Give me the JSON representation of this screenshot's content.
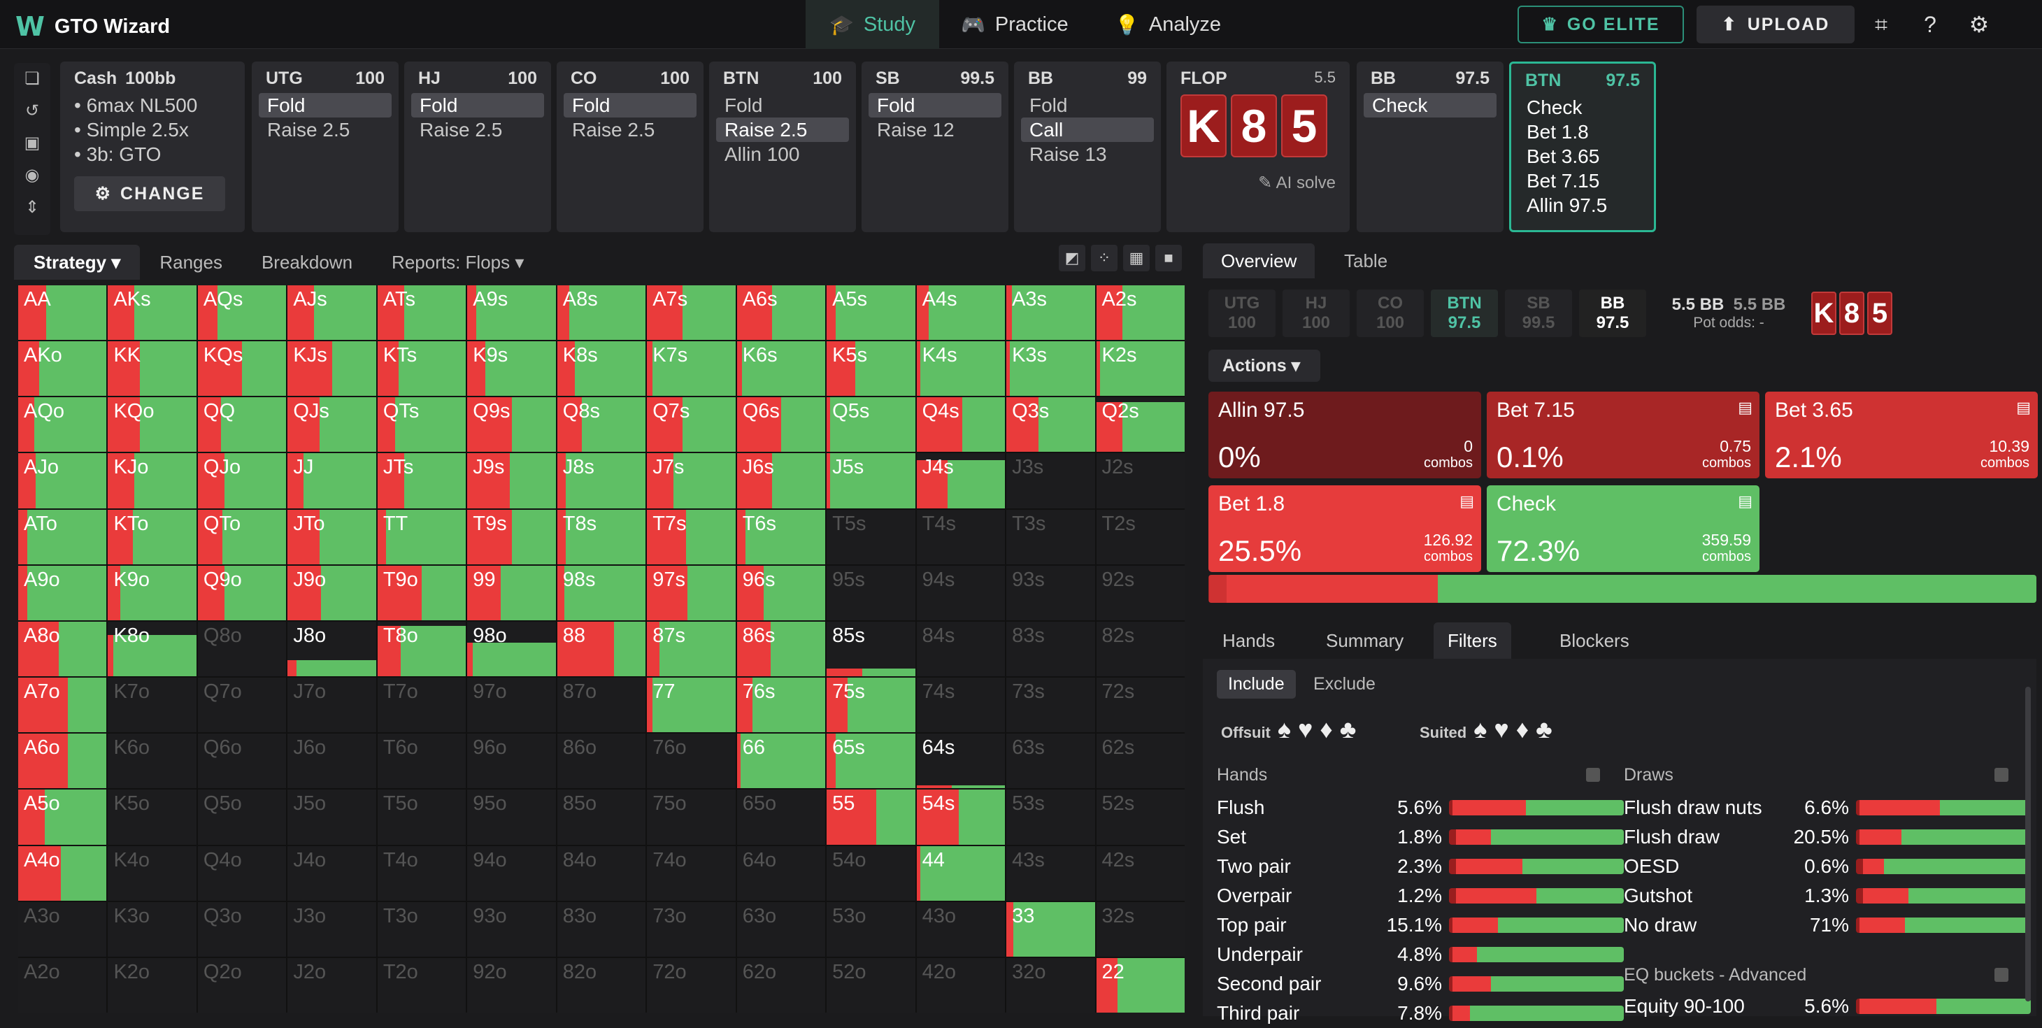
{
  "app": {
    "name": "GTO Wizard",
    "logo": "W"
  },
  "nav": [
    {
      "label": "Study",
      "icon": "graduation-cap-icon",
      "active": true
    },
    {
      "label": "Practice",
      "icon": "gamepad-icon",
      "active": false
    },
    {
      "label": "Analyze",
      "icon": "lightbulb-icon",
      "active": false
    }
  ],
  "header": {
    "elite": "GO ELITE",
    "upload": "UPLOAD"
  },
  "setup": {
    "title": "Cash",
    "stack": "100bb",
    "lines": [
      "• 6max NL500",
      "• Simple 2.5x",
      "• 3b: GTO"
    ],
    "change": "CHANGE"
  },
  "positions": [
    {
      "name": "UTG",
      "stack": "100",
      "options": [
        "Fold",
        "Raise 2.5"
      ],
      "selected": 0
    },
    {
      "name": "HJ",
      "stack": "100",
      "options": [
        "Fold",
        "Raise 2.5"
      ],
      "selected": 0
    },
    {
      "name": "CO",
      "stack": "100",
      "options": [
        "Fold",
        "Raise 2.5"
      ],
      "selected": 0
    },
    {
      "name": "BTN",
      "stack": "100",
      "options": [
        "Fold",
        "Raise 2.5",
        "Allin 100"
      ],
      "selected": 1
    },
    {
      "name": "SB",
      "stack": "99.5",
      "options": [
        "Fold",
        "Raise 12"
      ],
      "selected": 0
    },
    {
      "name": "BB",
      "stack": "99",
      "options": [
        "Fold",
        "Call",
        "Raise 13"
      ],
      "selected": 1
    }
  ],
  "flop": {
    "label": "FLOP",
    "pot": "5.5",
    "cards": [
      "K",
      "8",
      "5"
    ],
    "ai": "AI solve"
  },
  "bbcard": {
    "name": "BB",
    "stack": "97.5",
    "options": [
      "Check"
    ]
  },
  "btncard": {
    "name": "BTN",
    "stack": "97.5",
    "options": [
      "Check",
      "Bet 1.8",
      "Bet 3.65",
      "Bet 7.15",
      "Allin 97.5"
    ]
  },
  "left_tabs": [
    "Strategy",
    "Ranges",
    "Breakdown",
    "Reports: Flops"
  ],
  "right_tabs": [
    "Overview",
    "Table"
  ],
  "pos_row": [
    {
      "n": "UTG",
      "s": "100"
    },
    {
      "n": "HJ",
      "s": "100"
    },
    {
      "n": "CO",
      "s": "100"
    },
    {
      "n": "BTN",
      "s": "97.5"
    },
    {
      "n": "SB",
      "s": "99.5"
    },
    {
      "n": "BB",
      "s": "97.5"
    }
  ],
  "pot": {
    "a": "5.5 BB",
    "b": "5.5 BB",
    "odds": "Pot odds:",
    "oddsval": "-"
  },
  "board": [
    "K",
    "8",
    "5"
  ],
  "actions_label": "Actions",
  "actions": [
    {
      "name": "Allin 97.5",
      "pct": "0%",
      "combos": "0",
      "unit": "combos",
      "color": "#6e1b1d",
      "icon": false
    },
    {
      "name": "Bet 7.15",
      "pct": "0.1%",
      "combos": "0.75",
      "unit": "combos",
      "color": "#a82626",
      "icon": true
    },
    {
      "name": "Bet 3.65",
      "pct": "2.1%",
      "combos": "10.39",
      "unit": "combos",
      "color": "#cf3232",
      "icon": true
    },
    {
      "name": "Bet 1.8",
      "pct": "25.5%",
      "combos": "126.92",
      "unit": "combos",
      "color": "#e63c3c",
      "icon": true
    },
    {
      "name": "Check",
      "pct": "72.3%",
      "combos": "359.59",
      "unit": "combos",
      "color": "#5fbf65",
      "icon": true
    }
  ],
  "sub_tabs": [
    "Hands",
    "Summary",
    "Filters",
    "Blockers"
  ],
  "filters": {
    "include": "Include",
    "exclude": "Exclude",
    "offsuit": "Offsuit",
    "suited": "Suited",
    "hands_title": "Hands",
    "draws_title": "Draws",
    "eq_title": "EQ buckets - Advanced",
    "hands": [
      {
        "n": "Flush",
        "v": "5.6%",
        "r": 0.42,
        "d": 0.02
      },
      {
        "n": "Set",
        "v": "1.8%",
        "r": 0.2,
        "d": 0.04
      },
      {
        "n": "Two pair",
        "v": "2.3%",
        "r": 0.38,
        "d": 0.04
      },
      {
        "n": "Overpair",
        "v": "1.2%",
        "r": 0.46,
        "d": 0.04
      },
      {
        "n": "Top pair",
        "v": "15.1%",
        "r": 0.26,
        "d": 0.02
      },
      {
        "n": "Underpair",
        "v": "4.8%",
        "r": 0.14,
        "d": 0.02
      },
      {
        "n": "Second pair",
        "v": "9.6%",
        "r": 0.22,
        "d": 0.02
      },
      {
        "n": "Third pair",
        "v": "7.8%",
        "r": 0.1,
        "d": 0.02
      }
    ],
    "draws": [
      {
        "n": "Flush draw nuts",
        "v": "6.6%",
        "r": 0.46,
        "d": 0.02
      },
      {
        "n": "Flush draw",
        "v": "20.5%",
        "r": 0.24,
        "d": 0.02
      },
      {
        "n": "OESD",
        "v": "0.6%",
        "r": 0.12,
        "d": 0.04
      },
      {
        "n": "Gutshot",
        "v": "1.3%",
        "r": 0.26,
        "d": 0.04
      },
      {
        "n": "No draw",
        "v": "71%",
        "r": 0.26,
        "d": 0.02
      }
    ],
    "eq": [
      {
        "n": "Equity 90-100",
        "v": "5.6%",
        "r": 0.44,
        "d": 0.02
      }
    ]
  },
  "grid": [
    [
      [
        "AA",
        1,
        0.32
      ],
      [
        "AKs",
        1,
        0.3
      ],
      [
        "AQs",
        1,
        0.22
      ],
      [
        "AJs",
        1,
        0.3
      ],
      [
        "ATs",
        1,
        0.3
      ],
      [
        "A9s",
        1,
        0.1
      ],
      [
        "A8s",
        1,
        0.14
      ],
      [
        "A7s",
        1,
        0.4
      ],
      [
        "A6s",
        1,
        0.4
      ],
      [
        "A5s",
        1,
        0.1
      ],
      [
        "A4s",
        1,
        0.14
      ],
      [
        "A3s",
        1,
        0.06
      ],
      [
        "A2s",
        1,
        0.3
      ]
    ],
    [
      [
        "AKo",
        1,
        0.24
      ],
      [
        "KK",
        1,
        0.36
      ],
      [
        "KQs",
        1,
        0.5
      ],
      [
        "KJs",
        1,
        0.5
      ],
      [
        "KTs",
        1,
        0.24
      ],
      [
        "K9s",
        1,
        0.2
      ],
      [
        "K8s",
        1,
        0.2
      ],
      [
        "K7s",
        1,
        0.06
      ],
      [
        "K6s",
        1,
        0.06
      ],
      [
        "K5s",
        1,
        0.32
      ],
      [
        "K4s",
        1,
        0.04
      ],
      [
        "K3s",
        1,
        0.04
      ],
      [
        "K2s",
        1,
        0.04
      ]
    ],
    [
      [
        "AQo",
        1,
        0.18
      ],
      [
        "KQo",
        1,
        0.36
      ],
      [
        "QQ",
        1,
        0.26
      ],
      [
        "QJs",
        1,
        0.36
      ],
      [
        "QTs",
        1,
        0.2
      ],
      [
        "Q9s",
        1,
        0.5
      ],
      [
        "Q8s",
        1,
        0.28
      ],
      [
        "Q7s",
        1,
        0.4
      ],
      [
        "Q6s",
        1,
        0.5
      ],
      [
        "Q5s",
        1,
        0.04
      ],
      [
        "Q4s",
        1,
        0.52
      ],
      [
        "Q3s",
        1,
        0.36
      ],
      [
        "Q2s",
        0.92,
        0.3
      ]
    ],
    [
      [
        "AJo",
        1,
        0.2
      ],
      [
        "KJo",
        1,
        0.3
      ],
      [
        "QJo",
        1,
        0.3
      ],
      [
        "JJ",
        1,
        0.18
      ],
      [
        "JTs",
        1,
        0.3
      ],
      [
        "J9s",
        1,
        0.48
      ],
      [
        "J8s",
        1,
        0.1
      ],
      [
        "J7s",
        1,
        0.3
      ],
      [
        "J6s",
        1,
        0.4
      ],
      [
        "J5s",
        1,
        0.04
      ],
      [
        "J4s",
        0.88,
        0.35
      ],
      [
        "J3s",
        0,
        0
      ],
      [
        "J2s",
        0,
        0
      ]
    ],
    [
      [
        "ATo",
        1,
        0.1
      ],
      [
        "KTo",
        1,
        0.28
      ],
      [
        "QTo",
        1,
        0.28
      ],
      [
        "JTo",
        1,
        0.36
      ],
      [
        "TT",
        1,
        0.1
      ],
      [
        "T9s",
        1,
        0.5
      ],
      [
        "T8s",
        1,
        0.1
      ],
      [
        "T7s",
        1,
        0.44
      ],
      [
        "T6s",
        1,
        0.1
      ],
      [
        "T5s",
        0,
        0
      ],
      [
        "T4s",
        0,
        0
      ],
      [
        "T3s",
        0,
        0
      ],
      [
        "T2s",
        0,
        0
      ]
    ],
    [
      [
        "A9o",
        1,
        0.1
      ],
      [
        "K9o",
        1,
        0.14
      ],
      [
        "Q9o",
        1,
        0.3
      ],
      [
        "J9o",
        1,
        0.38
      ],
      [
        "T9o",
        1,
        0.5
      ],
      [
        "99",
        1,
        0.38
      ],
      [
        "98s",
        1,
        0.08
      ],
      [
        "97s",
        1,
        0.46
      ],
      [
        "96s",
        1,
        0.3
      ],
      [
        "95s",
        0,
        0
      ],
      [
        "94s",
        0,
        0
      ],
      [
        "93s",
        0,
        0
      ],
      [
        "92s",
        0,
        0
      ]
    ],
    [
      [
        "A8o",
        1,
        0.46
      ],
      [
        "K8o",
        0.76,
        0.06
      ],
      [
        "Q8o",
        0,
        0
      ],
      [
        "J8o",
        0.3,
        0.1
      ],
      [
        "T8o",
        0.92,
        0.26
      ],
      [
        "98o",
        0.62,
        0.06
      ],
      [
        "88",
        1,
        0.64
      ],
      [
        "87s",
        1,
        0.14
      ],
      [
        "86s",
        1,
        0.38
      ],
      [
        "85s",
        0.14,
        0.4
      ],
      [
        "84s",
        0,
        0
      ],
      [
        "83s",
        0,
        0
      ],
      [
        "82s",
        0,
        0
      ]
    ],
    [
      [
        "A7o",
        1,
        0.56
      ],
      [
        "K7o",
        0,
        0
      ],
      [
        "Q7o",
        0,
        0
      ],
      [
        "J7o",
        0,
        0
      ],
      [
        "T7o",
        0,
        0
      ],
      [
        "97o",
        0,
        0
      ],
      [
        "87o",
        0,
        0
      ],
      [
        "77",
        1,
        0.06
      ],
      [
        "76s",
        1,
        0.18
      ],
      [
        "75s",
        1,
        0.24
      ],
      [
        "74s",
        0,
        0
      ],
      [
        "73s",
        0,
        0
      ],
      [
        "72s",
        0,
        0
      ]
    ],
    [
      [
        "A6o",
        1,
        0.56
      ],
      [
        "K6o",
        0,
        0
      ],
      [
        "Q6o",
        0,
        0
      ],
      [
        "J6o",
        0,
        0
      ],
      [
        "T6o",
        0,
        0
      ],
      [
        "96o",
        0,
        0
      ],
      [
        "86o",
        0,
        0
      ],
      [
        "76o",
        0,
        0
      ],
      [
        "66",
        1,
        0.04
      ],
      [
        "65s",
        1,
        0.1
      ],
      [
        "64s",
        0.06,
        0.4
      ],
      [
        "63s",
        0,
        0
      ],
      [
        "62s",
        0,
        0
      ]
    ],
    [
      [
        "A5o",
        1,
        0.3
      ],
      [
        "K5o",
        0,
        0
      ],
      [
        "Q5o",
        0,
        0
      ],
      [
        "J5o",
        0,
        0
      ],
      [
        "T5o",
        0,
        0
      ],
      [
        "95o",
        0,
        0
      ],
      [
        "85o",
        0,
        0
      ],
      [
        "75o",
        0,
        0
      ],
      [
        "65o",
        0,
        0
      ],
      [
        "55",
        1,
        0.56
      ],
      [
        "54s",
        1,
        0.48
      ],
      [
        "53s",
        0,
        0
      ],
      [
        "52s",
        0,
        0
      ]
    ],
    [
      [
        "A4o",
        1,
        0.48
      ],
      [
        "K4o",
        0,
        0
      ],
      [
        "Q4o",
        0,
        0
      ],
      [
        "J4o",
        0,
        0
      ],
      [
        "T4o",
        0,
        0
      ],
      [
        "94o",
        0,
        0
      ],
      [
        "84o",
        0,
        0
      ],
      [
        "74o",
        0,
        0
      ],
      [
        "64o",
        0,
        0
      ],
      [
        "54o",
        0,
        0
      ],
      [
        "44",
        1,
        0.04
      ],
      [
        "43s",
        0,
        0
      ],
      [
        "42s",
        0,
        0
      ]
    ],
    [
      [
        "A3o",
        0,
        0
      ],
      [
        "K3o",
        0,
        0
      ],
      [
        "Q3o",
        0,
        0
      ],
      [
        "J3o",
        0,
        0
      ],
      [
        "T3o",
        0,
        0
      ],
      [
        "93o",
        0,
        0
      ],
      [
        "83o",
        0,
        0
      ],
      [
        "73o",
        0,
        0
      ],
      [
        "63o",
        0,
        0
      ],
      [
        "53o",
        0,
        0
      ],
      [
        "43o",
        0,
        0
      ],
      [
        "33",
        1,
        0.08
      ],
      [
        "32s",
        0,
        0
      ]
    ],
    [
      [
        "A2o",
        0,
        0
      ],
      [
        "K2o",
        0,
        0
      ],
      [
        "Q2o",
        0,
        0
      ],
      [
        "J2o",
        0,
        0
      ],
      [
        "T2o",
        0,
        0
      ],
      [
        "92o",
        0,
        0
      ],
      [
        "82o",
        0,
        0
      ],
      [
        "72o",
        0,
        0
      ],
      [
        "62o",
        0,
        0
      ],
      [
        "52o",
        0,
        0
      ],
      [
        "42o",
        0,
        0
      ],
      [
        "32o",
        0,
        0
      ],
      [
        "22",
        1,
        0.24
      ]
    ]
  ]
}
